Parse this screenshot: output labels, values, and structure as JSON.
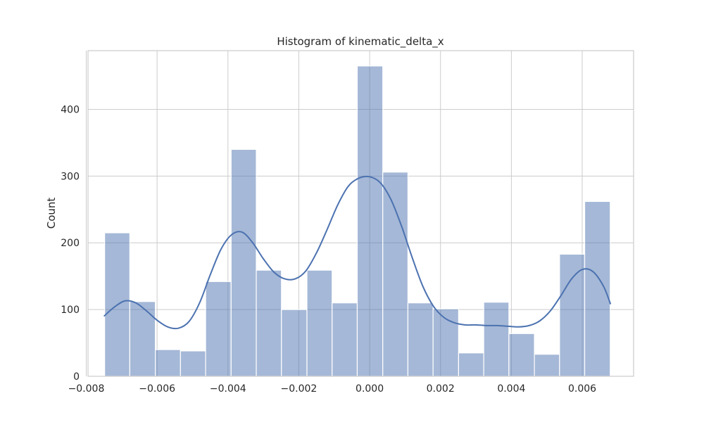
{
  "chart_data": {
    "type": "bar",
    "title": "Histogram of kinematic_delta_x",
    "xlabel": "",
    "ylabel": "Count",
    "xlim": [
      -0.00795,
      0.00745
    ],
    "ylim": [
      0,
      488
    ],
    "xticks": [
      -0.008,
      -0.006,
      -0.004,
      -0.002,
      0.0,
      0.002,
      0.004,
      0.006
    ],
    "xtick_labels": [
      "−0.008",
      "−0.006",
      "−0.004",
      "−0.002",
      "0.000",
      "0.002",
      "0.004",
      "0.006"
    ],
    "yticks": [
      0,
      100,
      200,
      300,
      400
    ],
    "ytick_labels": [
      "0",
      "100",
      "200",
      "300",
      "400"
    ],
    "grid": true,
    "bar_color": "#4c72b0",
    "bar_alpha": 0.5,
    "kde_color": "#4c72b0",
    "bins": {
      "edges": [
        -0.00748,
        -0.00677,
        -0.00605,
        -0.00534,
        -0.00463,
        -0.00391,
        -0.0032,
        -0.00249,
        -0.00177,
        -0.00106,
        -0.00035,
        0.00037,
        0.00108,
        0.00179,
        0.00251,
        0.00322,
        0.00393,
        0.00465,
        0.00536,
        0.00607,
        0.00679
      ],
      "counts": [
        215,
        112,
        40,
        38,
        142,
        340,
        159,
        100,
        159,
        110,
        465,
        306,
        110,
        101,
        35,
        111,
        64,
        33,
        183,
        262
      ]
    },
    "kde": {
      "x": [
        -0.0075,
        -0.0072,
        -0.0069,
        -0.0066,
        -0.0063,
        -0.006,
        -0.0057,
        -0.0054,
        -0.0051,
        -0.0048,
        -0.0045,
        -0.0042,
        -0.0039,
        -0.0036,
        -0.0033,
        -0.003,
        -0.0027,
        -0.0024,
        -0.0021,
        -0.0018,
        -0.0015,
        -0.0012,
        -0.0009,
        -0.0006,
        -0.0003,
        0.0,
        0.0003,
        0.0006,
        0.0009,
        0.0012,
        0.0015,
        0.0018,
        0.0021,
        0.0024,
        0.0027,
        0.003,
        0.0033,
        0.0036,
        0.0039,
        0.0042,
        0.0045,
        0.0048,
        0.0051,
        0.0054,
        0.0057,
        0.006,
        0.0063,
        0.0066,
        0.0068
      ],
      "y": [
        90,
        104,
        113,
        110,
        98,
        84,
        74,
        72,
        82,
        110,
        152,
        190,
        212,
        216,
        200,
        176,
        156,
        146,
        146,
        158,
        185,
        220,
        257,
        285,
        297,
        299,
        290,
        265,
        225,
        178,
        135,
        105,
        88,
        80,
        77,
        77,
        76,
        76,
        75,
        74,
        76,
        83,
        98,
        121,
        146,
        160,
        157,
        135,
        108
      ]
    }
  }
}
